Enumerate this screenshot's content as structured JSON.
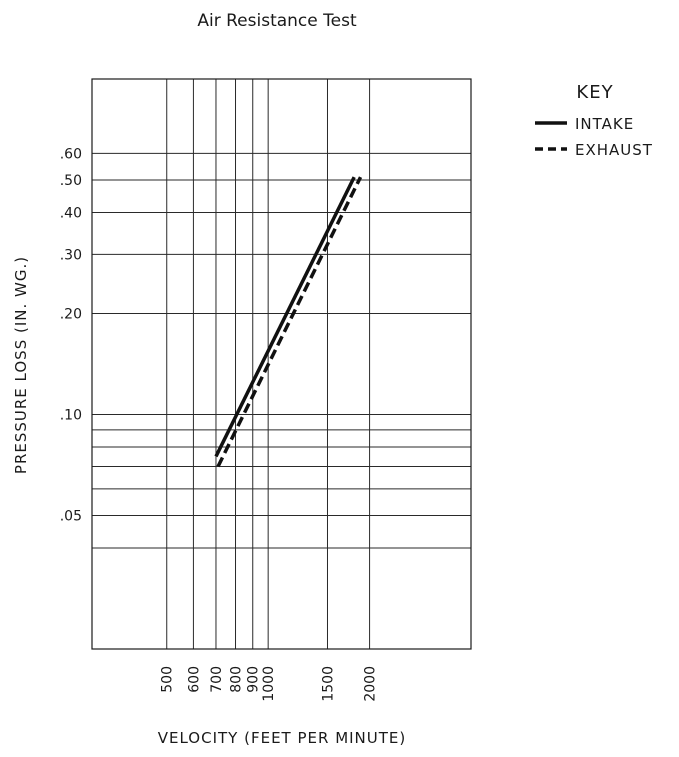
{
  "chart_data": {
    "type": "line",
    "title": "Air Resistance Test",
    "xlabel": "VELOCITY (FEET PER MINUTE)",
    "ylabel": "PRESSURE LOSS (IN. WG.)",
    "x_scale": "log",
    "y_scale": "log",
    "xlim": [
      300,
      4000
    ],
    "ylim": [
      0.02,
      1.0
    ],
    "x_gridlines": [
      500,
      600,
      700,
      800,
      900,
      1000,
      1500,
      2000
    ],
    "y_gridlines": [
      0.6,
      0.5,
      0.4,
      0.3,
      0.2,
      0.1,
      0.09,
      0.08,
      0.07,
      0.06,
      0.05,
      0.04
    ],
    "x_ticks": [
      {
        "value": 500,
        "label": "500"
      },
      {
        "value": 600,
        "label": "600"
      },
      {
        "value": 700,
        "label": "700"
      },
      {
        "value": 800,
        "label": "800"
      },
      {
        "value": 900,
        "label": "900"
      },
      {
        "value": 1000,
        "label": "1000"
      },
      {
        "value": 1500,
        "label": "1500"
      },
      {
        "value": 2000,
        "label": "2000"
      }
    ],
    "y_ticks": [
      {
        "value": 0.6,
        "label": ".60"
      },
      {
        "value": 0.5,
        "label": ".50"
      },
      {
        "value": 0.4,
        "label": ".40"
      },
      {
        "value": 0.3,
        "label": ".30"
      },
      {
        "value": 0.2,
        "label": ".20"
      },
      {
        "value": 0.1,
        "label": ".10"
      },
      {
        "value": 0.05,
        "label": ".05"
      }
    ],
    "grid": true,
    "legend": {
      "title": "KEY",
      "placement": "top-right"
    },
    "series": [
      {
        "name": "INTAKE",
        "style": "solid",
        "color": "#111111",
        "x": [
          700,
          1800
        ],
        "y": [
          0.075,
          0.51
        ]
      },
      {
        "name": "EXHAUST",
        "style": "dashed",
        "color": "#111111",
        "x": [
          710,
          1880
        ],
        "y": [
          0.07,
          0.51
        ]
      }
    ]
  }
}
